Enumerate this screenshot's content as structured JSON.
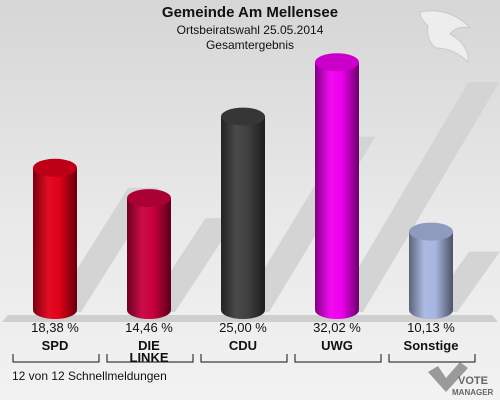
{
  "title": "Gemeinde Am Mellensee",
  "subtitle1": "Ortsbeiratswahl 25.05.2014",
  "subtitle2": "Gesamtergebnis",
  "footer": "12 von 12 Schnellmeldungen",
  "logo": {
    "line1": "VOTE",
    "line2": "MANAGER"
  },
  "chart_data": {
    "type": "bar",
    "categories": [
      "SPD",
      "DIE LINKE",
      "CDU",
      "UWG",
      "Sonstige"
    ],
    "category_lines": [
      [
        "SPD"
      ],
      [
        "DIE",
        "LINKE"
      ],
      [
        "CDU"
      ],
      [
        "UWG"
      ],
      [
        "Sonstige"
      ]
    ],
    "values": [
      18.38,
      14.46,
      25.0,
      32.02,
      10.13
    ],
    "value_labels": [
      "18,38 %",
      "14,46 %",
      "25,00 %",
      "32,02 %",
      "10,13 %"
    ],
    "colors": [
      "#e0001a",
      "#c8003c",
      "#404040",
      "#ee00ee",
      "#a8b6e0"
    ],
    "ylim": [
      0,
      35
    ]
  }
}
